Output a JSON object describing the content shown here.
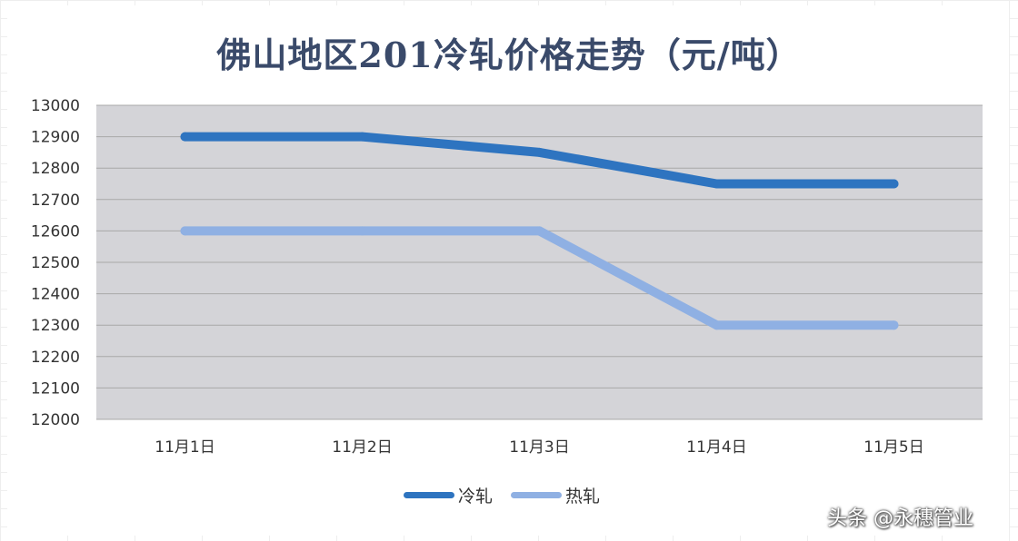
{
  "chart_data": {
    "type": "line",
    "title": "佛山地区201冷轧价格走势（元/吨）",
    "categories": [
      "11月1日",
      "11月2日",
      "11月3日",
      "11月4日",
      "11月5日"
    ],
    "series": [
      {
        "name": "冷轧",
        "values": [
          12900,
          12900,
          12850,
          12750,
          12750
        ],
        "color": "#2e74c0"
      },
      {
        "name": "热轧",
        "values": [
          12600,
          12600,
          12600,
          12300,
          12300
        ],
        "color": "#8fb0e3"
      }
    ],
    "ylim": [
      12000,
      13000
    ],
    "yticks": [
      "13000",
      "12900",
      "12800",
      "12700",
      "12600",
      "12500",
      "12400",
      "12300",
      "12200",
      "12100",
      "12000"
    ],
    "grid": true,
    "legend": "bottom",
    "plot_background": "#d4d4d8"
  },
  "watermark": "头条 @永穗管业"
}
